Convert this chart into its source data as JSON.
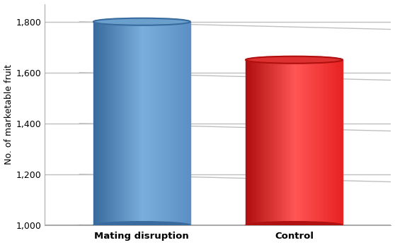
{
  "categories": [
    "Mating disruption",
    "Control"
  ],
  "values": [
    1800,
    1650
  ],
  "bar_colors_main": [
    "#5B8FC4",
    "#E82020"
  ],
  "bar_colors_dark": [
    "#3A6B9E",
    "#B01010"
  ],
  "bar_colors_light": [
    "#7AAEDC",
    "#FF5555"
  ],
  "bar_colors_top": [
    "#6BA0CC",
    "#DD3030"
  ],
  "ylabel": "No. of marketable fruit",
  "ylim": [
    1000,
    1870
  ],
  "yticks": [
    1000,
    1200,
    1400,
    1600,
    1800
  ],
  "xlabel_color": "#000000",
  "grid_color": "#C0C0C0",
  "background_color": "#FFFFFF",
  "wall_color": "#F0F0F0",
  "figsize": [
    5.58,
    3.47
  ],
  "dpi": 100
}
